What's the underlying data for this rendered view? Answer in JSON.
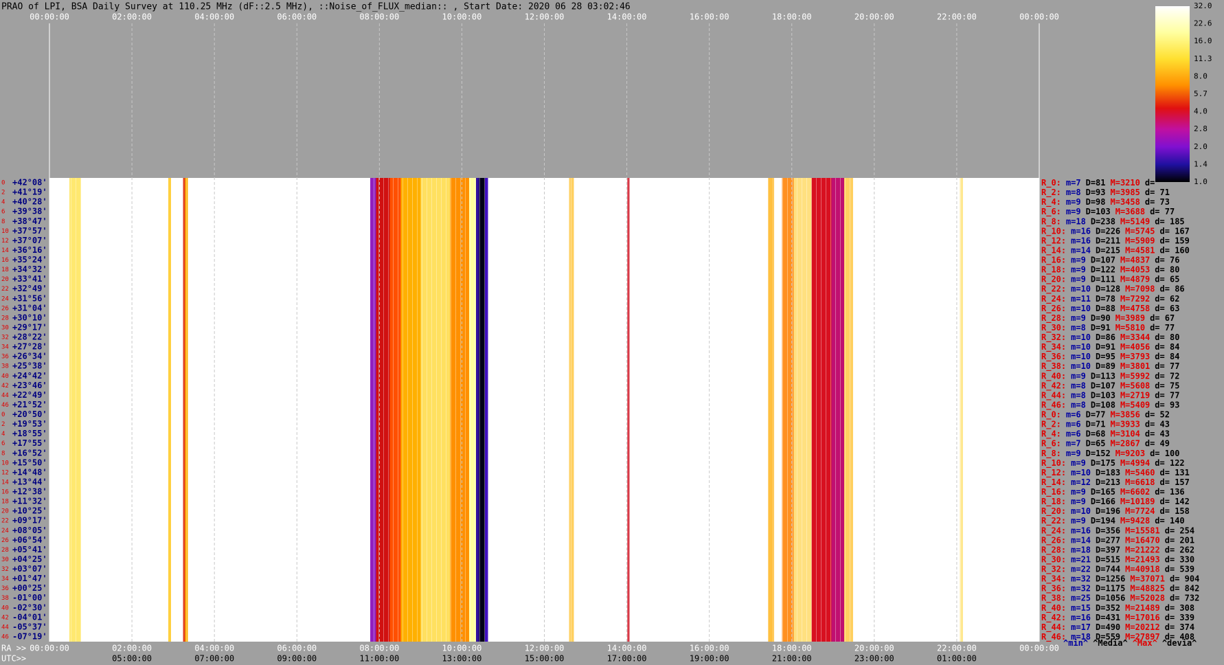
{
  "header": {
    "title": "PRAO of LPI, BSA Daily Survey at 110.25 MHz (dF::2.5 MHz), ::Noise_of_FLUX_median:: , Start Date: 2020 06 28 03:02:46"
  },
  "time_axis": {
    "top_ticks": [
      "00:00:00",
      "02:00:00",
      "04:00:00",
      "06:00:00",
      "08:00:00",
      "10:00:00",
      "12:00:00",
      "14:00:00",
      "16:00:00",
      "18:00:00",
      "20:00:00",
      "22:00:00",
      "00:00:00"
    ],
    "ra_prefix": "RA >>",
    "ra_ticks": [
      "00:00:00",
      "02:00:00",
      "04:00:00",
      "06:00:00",
      "08:00:00",
      "10:00:00",
      "12:00:00",
      "14:00:00",
      "16:00:00",
      "18:00:00",
      "20:00:00",
      "22:00:00",
      "00:00:00"
    ],
    "utc_prefix": "UTC>>",
    "utc_ticks": [
      "05:00:00",
      "07:00:00",
      "09:00:00",
      "11:00:00",
      "13:00:00",
      "15:00:00",
      "17:00:00",
      "19:00:00",
      "21:00:00",
      "23:00:00",
      "01:00:00"
    ]
  },
  "rows": [
    {
      "n": "0",
      "dec": "+42°08'",
      "beam": "R_0:",
      "m": "m=7",
      "D": "D=81",
      "M": "M=3210",
      "d": "d="
    },
    {
      "n": "2",
      "dec": "+41°19'",
      "beam": "R_2:",
      "m": "m=8",
      "D": "D=93",
      "M": "M=3985",
      "d": "d= 71"
    },
    {
      "n": "4",
      "dec": "+40°28'",
      "beam": "R_4:",
      "m": "m=9",
      "D": "D=98",
      "M": "M=3458",
      "d": "d= 73"
    },
    {
      "n": "6",
      "dec": "+39°38'",
      "beam": "R_6:",
      "m": "m=9",
      "D": "D=103",
      "M": "M=3688",
      "d": "d= 77"
    },
    {
      "n": "8",
      "dec": "+38°47'",
      "beam": "R_8:",
      "m": "m=18",
      "D": "D=238",
      "M": "M=5149",
      "d": "d= 185"
    },
    {
      "n": "10",
      "dec": "+37°57'",
      "beam": "R_10:",
      "m": "m=16",
      "D": "D=226",
      "M": "M=5745",
      "d": "d= 167"
    },
    {
      "n": "12",
      "dec": "+37°07'",
      "beam": "R_12:",
      "m": "m=16",
      "D": "D=211",
      "M": "M=5909",
      "d": "d= 159"
    },
    {
      "n": "14",
      "dec": "+36°16'",
      "beam": "R_14:",
      "m": "m=14",
      "D": "D=215",
      "M": "M=4581",
      "d": "d= 160"
    },
    {
      "n": "16",
      "dec": "+35°24'",
      "beam": "R_16:",
      "m": "m=9",
      "D": "D=107",
      "M": "M=4837",
      "d": "d= 76"
    },
    {
      "n": "18",
      "dec": "+34°32'",
      "beam": "R_18:",
      "m": "m=9",
      "D": "D=122",
      "M": "M=4053",
      "d": "d= 80"
    },
    {
      "n": "20",
      "dec": "+33°41'",
      "beam": "R_20:",
      "m": "m=9",
      "D": "D=111",
      "M": "M=4879",
      "d": "d= 65"
    },
    {
      "n": "22",
      "dec": "+32°49'",
      "beam": "R_22:",
      "m": "m=10",
      "D": "D=128",
      "M": "M=7098",
      "d": "d= 86"
    },
    {
      "n": "24",
      "dec": "+31°56'",
      "beam": "R_24:",
      "m": "m=11",
      "D": "D=78",
      "M": "M=7292",
      "d": "d= 62"
    },
    {
      "n": "26",
      "dec": "+31°04'",
      "beam": "R_26:",
      "m": "m=10",
      "D": "D=88",
      "M": "M=4758",
      "d": "d= 63"
    },
    {
      "n": "28",
      "dec": "+30°10'",
      "beam": "R_28:",
      "m": "m=9",
      "D": "D=90",
      "M": "M=3989",
      "d": "d= 67"
    },
    {
      "n": "30",
      "dec": "+29°17'",
      "beam": "R_30:",
      "m": "m=8",
      "D": "D=91",
      "M": "M=5810",
      "d": "d= 77"
    },
    {
      "n": "32",
      "dec": "+28°22'",
      "beam": "R_32:",
      "m": "m=10",
      "D": "D=86",
      "M": "M=3344",
      "d": "d= 80"
    },
    {
      "n": "34",
      "dec": "+27°28'",
      "beam": "R_34:",
      "m": "m=10",
      "D": "D=91",
      "M": "M=4056",
      "d": "d= 84"
    },
    {
      "n": "36",
      "dec": "+26°34'",
      "beam": "R_36:",
      "m": "m=10",
      "D": "D=95",
      "M": "M=3793",
      "d": "d= 84"
    },
    {
      "n": "38",
      "dec": "+25°38'",
      "beam": "R_38:",
      "m": "m=10",
      "D": "D=89",
      "M": "M=3801",
      "d": "d= 77"
    },
    {
      "n": "40",
      "dec": "+24°42'",
      "beam": "R_40:",
      "m": "m=9",
      "D": "D=113",
      "M": "M=5992",
      "d": "d= 72"
    },
    {
      "n": "42",
      "dec": "+23°46'",
      "beam": "R_42:",
      "m": "m=8",
      "D": "D=107",
      "M": "M=5608",
      "d": "d= 75"
    },
    {
      "n": "44",
      "dec": "+22°49'",
      "beam": "R_44:",
      "m": "m=8",
      "D": "D=103",
      "M": "M=2719",
      "d": "d= 77"
    },
    {
      "n": "46",
      "dec": "+21°52'",
      "beam": "R_46:",
      "m": "m=8",
      "D": "D=108",
      "M": "M=5409",
      "d": "d= 93"
    },
    {
      "n": "0",
      "dec": "+20°50'",
      "beam": "R_0:",
      "m": "m=6",
      "D": "D=77",
      "M": "M=3856",
      "d": "d= 52"
    },
    {
      "n": "2",
      "dec": "+19°53'",
      "beam": "R_2:",
      "m": "m=6",
      "D": "D=71",
      "M": "M=3933",
      "d": "d= 43"
    },
    {
      "n": "4",
      "dec": "+18°55'",
      "beam": "R_4:",
      "m": "m=6",
      "D": "D=68",
      "M": "M=3104",
      "d": "d= 43"
    },
    {
      "n": "6",
      "dec": "+17°55'",
      "beam": "R_6:",
      "m": "m=7",
      "D": "D=65",
      "M": "M=2867",
      "d": "d= 49"
    },
    {
      "n": "8",
      "dec": "+16°52'",
      "beam": "R_8:",
      "m": "m=9",
      "D": "D=152",
      "M": "M=9203",
      "d": "d= 100"
    },
    {
      "n": "10",
      "dec": "+15°50'",
      "beam": "R_10:",
      "m": "m=9",
      "D": "D=175",
      "M": "M=4994",
      "d": "d= 122"
    },
    {
      "n": "12",
      "dec": "+14°48'",
      "beam": "R_12:",
      "m": "m=10",
      "D": "D=183",
      "M": "M=5460",
      "d": "d= 131"
    },
    {
      "n": "14",
      "dec": "+13°44'",
      "beam": "R_14:",
      "m": "m=12",
      "D": "D=213",
      "M": "M=6618",
      "d": "d= 157"
    },
    {
      "n": "16",
      "dec": "+12°38'",
      "beam": "R_16:",
      "m": "m=9",
      "D": "D=165",
      "M": "M=6602",
      "d": "d= 136"
    },
    {
      "n": "18",
      "dec": "+11°32'",
      "beam": "R_18:",
      "m": "m=9",
      "D": "D=166",
      "M": "M=10189",
      "d": "d= 142"
    },
    {
      "n": "20",
      "dec": "+10°25'",
      "beam": "R_20:",
      "m": "m=10",
      "D": "D=196",
      "M": "M=7724",
      "d": "d= 158"
    },
    {
      "n": "22",
      "dec": "+09°17'",
      "beam": "R_22:",
      "m": "m=9",
      "D": "D=194",
      "M": "M=9428",
      "d": "d= 140"
    },
    {
      "n": "24",
      "dec": "+08°05'",
      "beam": "R_24:",
      "m": "m=16",
      "D": "D=356",
      "M": "M=15581",
      "d": "d= 254"
    },
    {
      "n": "26",
      "dec": "+06°54'",
      "beam": "R_26:",
      "m": "m=14",
      "D": "D=277",
      "M": "M=16470",
      "d": "d= 201"
    },
    {
      "n": "28",
      "dec": "+05°41'",
      "beam": "R_28:",
      "m": "m=18",
      "D": "D=397",
      "M": "M=21222",
      "d": "d= 262"
    },
    {
      "n": "30",
      "dec": "+04°25'",
      "beam": "R_30:",
      "m": "m=21",
      "D": "D=515",
      "M": "M=21493",
      "d": "d= 330"
    },
    {
      "n": "32",
      "dec": "+03°07'",
      "beam": "R_32:",
      "m": "m=22",
      "D": "D=744",
      "M": "M=40918",
      "d": "d= 539"
    },
    {
      "n": "34",
      "dec": "+01°47'",
      "beam": "R_34:",
      "m": "m=32",
      "D": "D=1256",
      "M": "M=37071",
      "d": "d= 904"
    },
    {
      "n": "36",
      "dec": "+00°25'",
      "beam": "R_36:",
      "m": "m=32",
      "D": "D=1175",
      "M": "M=48825",
      "d": "d= 842"
    },
    {
      "n": "38",
      "dec": "-01°00'",
      "beam": "R_38:",
      "m": "m=25",
      "D": "D=1056",
      "M": "M=52028",
      "d": "d= 732"
    },
    {
      "n": "40",
      "dec": "-02°30'",
      "beam": "R_40:",
      "m": "m=15",
      "D": "D=352",
      "M": "M=21489",
      "d": "d= 308"
    },
    {
      "n": "42",
      "dec": "-04°01'",
      "beam": "R_42:",
      "m": "m=16",
      "D": "D=431",
      "M": "M=17016",
      "d": "d= 339"
    },
    {
      "n": "44",
      "dec": "-05°37'",
      "beam": "R_44:",
      "m": "m=17",
      "D": "D=490",
      "M": "M=20212",
      "d": "d= 374"
    },
    {
      "n": "46",
      "dec": "-07°19'",
      "beam": "R_46:",
      "m": "m=18",
      "D": "D=559",
      "M": "M=27897",
      "d": "d= 408"
    }
  ],
  "colorbar": {
    "ticks": [
      "32.0",
      "22.6",
      "16.0",
      "11.3",
      "8.0",
      "5.7",
      "4.0",
      "2.8",
      "2.0",
      "1.4",
      "1.0"
    ]
  },
  "legend": [
    "^min^",
    "^Media^",
    "^Max^",
    "^devia^"
  ]
}
